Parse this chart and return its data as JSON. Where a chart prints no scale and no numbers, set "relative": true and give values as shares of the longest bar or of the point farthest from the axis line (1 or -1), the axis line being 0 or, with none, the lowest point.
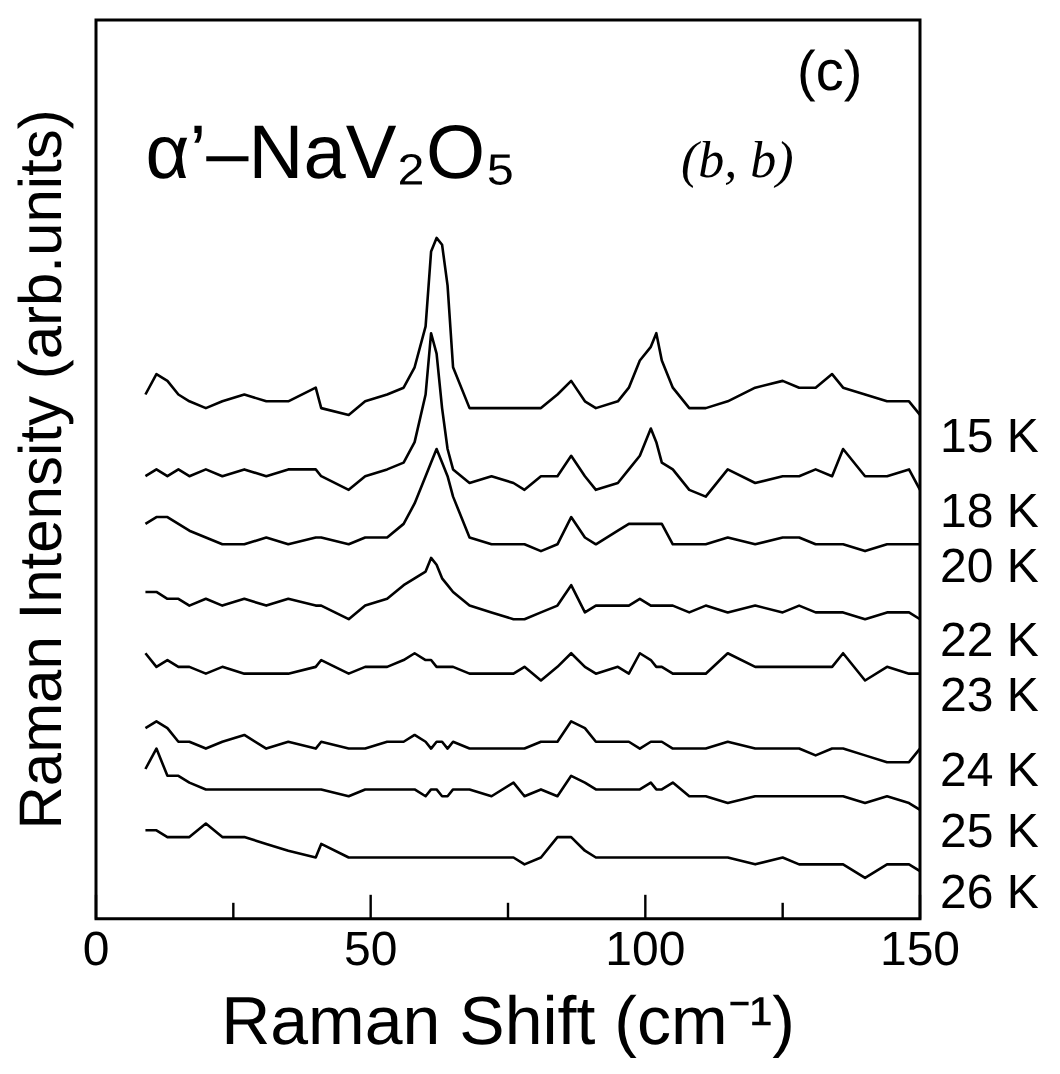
{
  "chart_data": {
    "type": "line",
    "relative": true,
    "xlabel": "Raman Shift (cm⁻¹)",
    "ylabel": "Raman Intensity (arb.units)",
    "annotations": [
      "(c)",
      "α’–NaV₂O₅",
      "(b, b)"
    ],
    "marker": "none",
    "line_style": "solid",
    "legend": false,
    "xlim": [
      0,
      150
    ],
    "xticks": [
      0,
      {
        "value": 25,
        "label": null
      },
      50,
      {
        "value": 75,
        "label": null
      },
      100,
      {
        "value": 125,
        "label": null
      },
      150
    ],
    "x": [
      9,
      11,
      13,
      15,
      17,
      20,
      23,
      27,
      31,
      35,
      40,
      41,
      46,
      49,
      53,
      56,
      58,
      60,
      61,
      62,
      63,
      64,
      65,
      68,
      72,
      76,
      78,
      81,
      84,
      86.5,
      89,
      91,
      95,
      97,
      99,
      101,
      102,
      103,
      105,
      108,
      111,
      115,
      120,
      125,
      128,
      131,
      134,
      136,
      140,
      144,
      148,
      150
    ],
    "series": [
      {
        "name": "15 K",
        "color": "#000000",
        "values": [
          0.77,
          0.8,
          0.79,
          0.77,
          0.76,
          0.75,
          0.76,
          0.77,
          0.76,
          0.76,
          0.78,
          0.75,
          0.74,
          0.76,
          0.77,
          0.78,
          0.81,
          0.87,
          0.98,
          1.0,
          0.99,
          0.93,
          0.81,
          0.75,
          0.75,
          0.75,
          0.75,
          0.75,
          0.77,
          0.79,
          0.76,
          0.75,
          0.76,
          0.78,
          0.82,
          0.84,
          0.86,
          0.82,
          0.78,
          0.75,
          0.75,
          0.76,
          0.78,
          0.79,
          0.78,
          0.78,
          0.8,
          0.78,
          0.77,
          0.76,
          0.76,
          0.74
        ]
      },
      {
        "name": "18 K",
        "color": "#000000",
        "values": [
          0.65,
          0.66,
          0.65,
          0.66,
          0.65,
          0.66,
          0.65,
          0.66,
          0.65,
          0.66,
          0.66,
          0.65,
          0.63,
          0.65,
          0.66,
          0.67,
          0.7,
          0.77,
          0.86,
          0.83,
          0.75,
          0.69,
          0.66,
          0.64,
          0.65,
          0.64,
          0.63,
          0.65,
          0.65,
          0.68,
          0.65,
          0.63,
          0.64,
          0.66,
          0.68,
          0.72,
          0.7,
          0.67,
          0.66,
          0.63,
          0.62,
          0.66,
          0.64,
          0.65,
          0.65,
          0.66,
          0.65,
          0.69,
          0.65,
          0.65,
          0.66,
          0.63
        ]
      },
      {
        "name": "20 K",
        "color": "#000000",
        "values": [
          0.58,
          0.59,
          0.59,
          0.58,
          0.57,
          0.56,
          0.55,
          0.55,
          0.56,
          0.55,
          0.56,
          0.56,
          0.55,
          0.56,
          0.56,
          0.58,
          0.61,
          0.65,
          0.67,
          0.69,
          0.67,
          0.65,
          0.62,
          0.56,
          0.55,
          0.55,
          0.55,
          0.54,
          0.55,
          0.59,
          0.56,
          0.55,
          0.57,
          0.58,
          0.58,
          0.58,
          0.58,
          0.58,
          0.55,
          0.55,
          0.55,
          0.56,
          0.55,
          0.56,
          0.56,
          0.55,
          0.55,
          0.55,
          0.54,
          0.55,
          0.55,
          0.55
        ]
      },
      {
        "name": "22 K",
        "color": "#000000",
        "values": [
          0.48,
          0.48,
          0.47,
          0.47,
          0.46,
          0.47,
          0.46,
          0.47,
          0.46,
          0.47,
          0.46,
          0.46,
          0.44,
          0.46,
          0.47,
          0.49,
          0.5,
          0.51,
          0.53,
          0.52,
          0.5,
          0.49,
          0.48,
          0.46,
          0.45,
          0.44,
          0.44,
          0.45,
          0.46,
          0.49,
          0.45,
          0.46,
          0.46,
          0.46,
          0.47,
          0.46,
          0.46,
          0.46,
          0.46,
          0.45,
          0.46,
          0.45,
          0.46,
          0.45,
          0.46,
          0.45,
          0.45,
          0.45,
          0.44,
          0.45,
          0.45,
          0.44
        ]
      },
      {
        "name": "23 K",
        "color": "#000000",
        "values": [
          0.39,
          0.37,
          0.38,
          0.37,
          0.37,
          0.36,
          0.37,
          0.36,
          0.36,
          0.36,
          0.37,
          0.38,
          0.36,
          0.37,
          0.37,
          0.38,
          0.39,
          0.38,
          0.38,
          0.37,
          0.37,
          0.37,
          0.37,
          0.36,
          0.36,
          0.36,
          0.37,
          0.35,
          0.37,
          0.39,
          0.37,
          0.36,
          0.37,
          0.36,
          0.39,
          0.38,
          0.37,
          0.37,
          0.36,
          0.36,
          0.36,
          0.39,
          0.37,
          0.37,
          0.37,
          0.37,
          0.37,
          0.39,
          0.35,
          0.37,
          0.36,
          0.36
        ]
      },
      {
        "name": "24 K",
        "color": "#000000",
        "values": [
          0.28,
          0.29,
          0.28,
          0.26,
          0.26,
          0.25,
          0.26,
          0.27,
          0.25,
          0.26,
          0.25,
          0.26,
          0.25,
          0.25,
          0.26,
          0.26,
          0.27,
          0.26,
          0.25,
          0.26,
          0.26,
          0.25,
          0.26,
          0.25,
          0.25,
          0.25,
          0.25,
          0.26,
          0.26,
          0.29,
          0.28,
          0.26,
          0.26,
          0.26,
          0.25,
          0.26,
          0.26,
          0.26,
          0.25,
          0.25,
          0.25,
          0.26,
          0.25,
          0.25,
          0.25,
          0.24,
          0.25,
          0.25,
          0.24,
          0.23,
          0.23,
          0.25
        ]
      },
      {
        "name": "25 K",
        "color": "#000000",
        "values": [
          0.22,
          0.25,
          0.21,
          0.21,
          0.2,
          0.19,
          0.19,
          0.19,
          0.19,
          0.19,
          0.19,
          0.19,
          0.18,
          0.19,
          0.19,
          0.19,
          0.19,
          0.18,
          0.19,
          0.19,
          0.18,
          0.18,
          0.19,
          0.19,
          0.18,
          0.2,
          0.18,
          0.19,
          0.18,
          0.21,
          0.2,
          0.19,
          0.19,
          0.19,
          0.19,
          0.2,
          0.19,
          0.19,
          0.2,
          0.18,
          0.18,
          0.17,
          0.18,
          0.18,
          0.18,
          0.18,
          0.18,
          0.18,
          0.17,
          0.18,
          0.17,
          0.16
        ]
      },
      {
        "name": "26 K",
        "color": "#000000",
        "values": [
          0.13,
          0.13,
          0.12,
          0.12,
          0.12,
          0.14,
          0.12,
          0.12,
          0.11,
          0.1,
          0.09,
          0.11,
          0.09,
          0.09,
          0.09,
          0.09,
          0.09,
          0.09,
          0.09,
          0.09,
          0.09,
          0.09,
          0.09,
          0.09,
          0.09,
          0.09,
          0.08,
          0.09,
          0.12,
          0.12,
          0.1,
          0.09,
          0.09,
          0.09,
          0.09,
          0.09,
          0.09,
          0.09,
          0.09,
          0.09,
          0.09,
          0.09,
          0.08,
          0.09,
          0.08,
          0.08,
          0.08,
          0.08,
          0.06,
          0.08,
          0.08,
          0.07
        ]
      }
    ]
  }
}
